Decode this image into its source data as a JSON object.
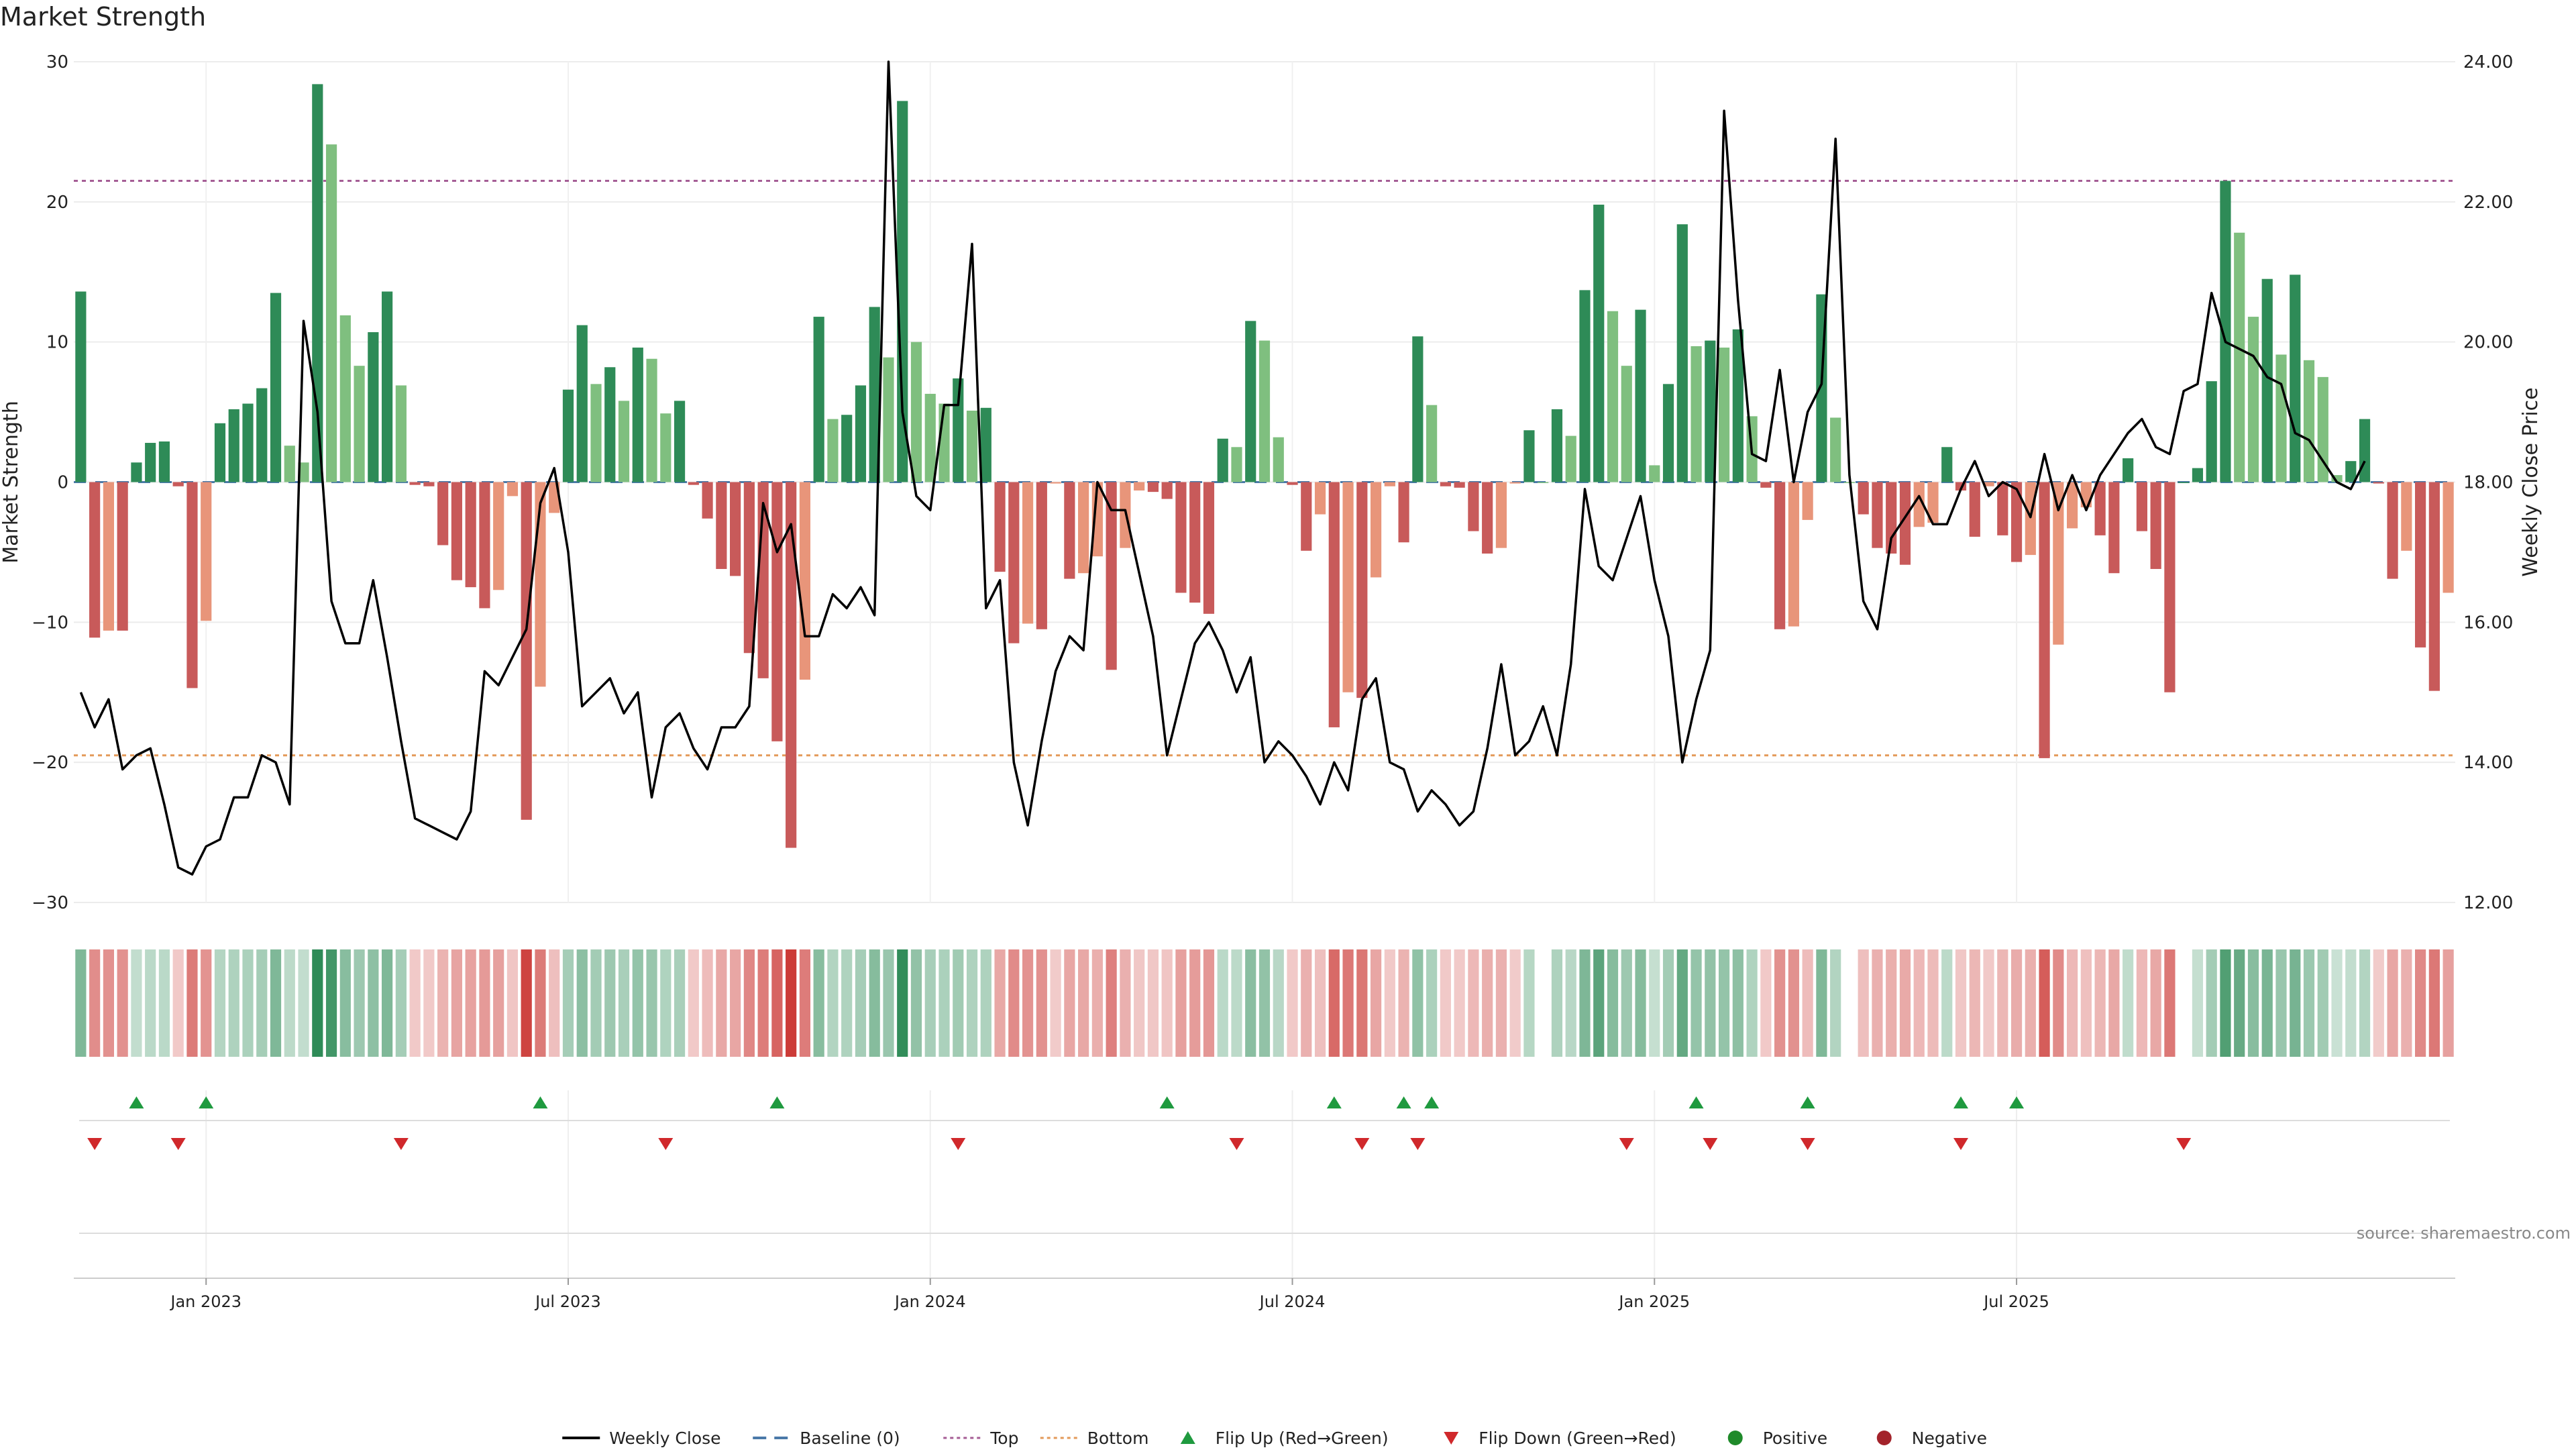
{
  "chart_data": {
    "type": "bar",
    "title": "Market Strength",
    "ylabel_left": "Market Strength",
    "ylabel_right": "Weekly Close Price",
    "ylim_left": [
      -30,
      30
    ],
    "ylim_right": [
      12,
      24
    ],
    "yticks_left": [
      {
        "v": 30,
        "label": "30"
      },
      {
        "v": 20,
        "label": "20"
      },
      {
        "v": 10,
        "label": "10"
      },
      {
        "v": 0,
        "label": "0"
      },
      {
        "v": -10,
        "label": "−10"
      },
      {
        "v": -20,
        "label": "−20"
      },
      {
        "v": -30,
        "label": "−30"
      }
    ],
    "yticks_right": [
      {
        "v": 24,
        "label": "24.00"
      },
      {
        "v": 22,
        "label": "22.00"
      },
      {
        "v": 20,
        "label": "20.00"
      },
      {
        "v": 18,
        "label": "18.00"
      },
      {
        "v": 16,
        "label": "16.00"
      },
      {
        "v": 14,
        "label": "14.00"
      },
      {
        "v": 12,
        "label": "12.00"
      }
    ],
    "top_line": 21.5,
    "bottom_line": -19.5,
    "x_ticks": [
      {
        "index": 9,
        "label": "Jan 2023"
      },
      {
        "index": 35,
        "label": "Jul 2023"
      },
      {
        "index": 61,
        "label": "Jan 2024"
      },
      {
        "index": 87,
        "label": "Jul 2024"
      },
      {
        "index": 113,
        "label": "Jan 2025"
      },
      {
        "index": 139,
        "label": "Jul 2025"
      }
    ],
    "strength": [
      13.6,
      -11.1,
      -10.6,
      -10.6,
      1.4,
      2.8,
      2.9,
      -0.3,
      -14.7,
      -9.9,
      4.2,
      5.2,
      5.6,
      6.7,
      13.5,
      2.6,
      1.4,
      28.4,
      24.1,
      11.9,
      8.3,
      10.7,
      13.6,
      6.9,
      -0.2,
      -0.3,
      -4.5,
      -7.0,
      -7.5,
      -9.0,
      -7.7,
      -1.0,
      -24.1,
      -14.6,
      -2.2,
      6.6,
      11.2,
      7.0,
      8.2,
      5.8,
      9.6,
      8.8,
      4.9,
      5.8,
      -0.2,
      -2.6,
      -6.2,
      -6.7,
      -12.2,
      -14.0,
      -18.5,
      -26.1,
      -14.1,
      11.8,
      4.5,
      4.8,
      6.9,
      12.5,
      8.9,
      27.2,
      10.0,
      6.3,
      5.6,
      7.4,
      5.1,
      5.3,
      -6.4,
      -11.5,
      -10.1,
      -10.5,
      -0.1,
      -6.9,
      -6.5,
      -5.3,
      -13.4,
      -4.7,
      -0.6,
      -0.7,
      -1.2,
      -7.9,
      -8.6,
      -9.4,
      3.1,
      2.5,
      11.5,
      10.1,
      3.2,
      -0.2,
      -4.9,
      -2.3,
      -17.5,
      -15.0,
      -15.4,
      -6.8,
      -0.3,
      -4.3,
      10.4,
      5.5,
      -0.3,
      -0.4,
      -3.5,
      -5.1,
      -4.7,
      -0.1,
      3.7,
      0.0,
      5.2,
      3.3,
      13.7,
      19.8,
      12.2,
      8.3,
      12.3,
      1.2,
      7.0,
      18.4,
      9.7,
      10.1,
      9.6,
      10.9,
      4.7,
      -0.4,
      -10.5,
      -10.3,
      -2.7,
      13.4,
      4.6,
      0.0,
      -2.3,
      -4.7,
      -5.1,
      -5.9,
      -3.2,
      -2.9,
      2.5,
      -0.6,
      -3.9,
      -0.3,
      -3.8,
      -5.7,
      -5.2,
      -19.7,
      -11.6,
      -3.3,
      -1.8,
      -3.8,
      -6.5,
      1.7,
      -3.5,
      -6.2,
      -15.0,
      0.0,
      1.0,
      7.2,
      21.5,
      17.8,
      11.8,
      14.5,
      9.1,
      14.8,
      8.7,
      7.5,
      0.5,
      1.5,
      4.5,
      -0.1,
      -6.9,
      -4.9,
      -11.8,
      -14.9,
      -7.9
    ],
    "weekly_close": [
      15.0,
      14.5,
      14.9,
      13.9,
      14.1,
      14.2,
      13.4,
      12.5,
      12.4,
      12.8,
      12.9,
      13.5,
      13.5,
      14.1,
      14.0,
      13.4,
      20.3,
      19.0,
      16.3,
      15.7,
      15.7,
      16.6,
      15.5,
      14.3,
      13.2,
      13.1,
      13.0,
      12.9,
      13.3,
      15.3,
      15.1,
      15.5,
      15.9,
      17.7,
      18.2,
      17.0,
      14.8,
      15.0,
      15.2,
      14.7,
      15.0,
      13.5,
      14.5,
      14.7,
      14.2,
      13.9,
      14.5,
      14.5,
      14.8,
      17.7,
      17.0,
      17.4,
      15.8,
      15.8,
      16.4,
      16.2,
      16.5,
      16.1,
      24.0,
      19.0,
      17.8,
      17.6,
      19.1,
      19.1,
      21.4,
      16.2,
      16.6,
      14.0,
      13.1,
      14.3,
      15.3,
      15.8,
      15.6,
      18.0,
      17.6,
      17.6,
      16.7,
      15.8,
      14.1,
      14.9,
      15.7,
      16.0,
      15.6,
      15.0,
      15.5,
      14.0,
      14.3,
      14.1,
      13.8,
      13.4,
      14.0,
      13.6,
      14.9,
      15.2,
      14.0,
      13.9,
      13.3,
      13.6,
      13.4,
      13.1,
      13.3,
      14.2,
      15.4,
      14.1,
      14.3,
      14.8,
      14.1,
      15.4,
      17.9,
      16.8,
      16.6,
      17.2,
      17.8,
      16.6,
      15.8,
      14.0,
      14.9,
      15.6,
      23.3,
      20.6,
      18.4,
      18.3,
      19.6,
      18.0,
      19.0,
      19.4,
      22.9,
      18.1,
      16.3,
      15.9,
      17.2,
      17.5,
      17.8,
      17.4,
      17.4,
      17.9,
      18.3,
      17.8,
      18.0,
      17.9,
      17.5,
      18.4,
      17.6,
      18.1,
      17.6,
      18.1,
      18.4,
      18.7,
      18.9,
      18.5,
      18.4,
      19.3,
      19.4,
      20.7,
      20.0,
      19.9,
      19.8,
      19.5,
      19.4,
      18.7,
      18.6,
      18.3,
      18.0,
      17.9,
      18.3
    ],
    "flip_up": [
      4,
      9,
      33,
      50,
      78,
      90,
      95,
      97,
      116,
      124,
      135,
      139
    ],
    "flip_down": [
      1,
      7,
      23,
      42,
      63,
      83,
      92,
      96,
      111,
      117,
      124,
      135,
      151
    ],
    "signal_row": {
      "positive_color": "#2e8b57",
      "negative_color": "#c9302c"
    },
    "legend": [
      {
        "kind": "line",
        "label": "Weekly Close",
        "color": "#000000"
      },
      {
        "kind": "dash",
        "label": "Baseline (0)",
        "color": "#4a79a8"
      },
      {
        "kind": "dot",
        "label": "Top",
        "color": "#a55d95"
      },
      {
        "kind": "dot",
        "label": "Bottom",
        "color": "#e39a5a"
      },
      {
        "kind": "triup",
        "label": "Flip Up (Red→Green)",
        "color": "#1f9a3f"
      },
      {
        "kind": "tridown",
        "label": "Flip Down (Green→Red)",
        "color": "#d0282b"
      },
      {
        "kind": "circle",
        "label": "Positive",
        "color": "#1f8a2a"
      },
      {
        "kind": "circle",
        "label": "Negative",
        "color": "#a3232b"
      }
    ],
    "colors": {
      "pos_dark": "#2e8b57",
      "pos_light": "#7fbf7f",
      "neg_dark": "#c85a5a",
      "neg_light": "#e8957a"
    }
  },
  "source": "source: sharemaestro.com"
}
